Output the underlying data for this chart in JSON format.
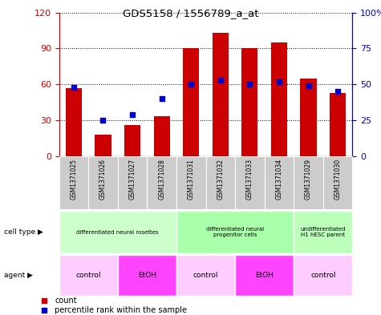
{
  "title": "GDS5158 / 1556789_a_at",
  "samples": [
    "GSM1371025",
    "GSM1371026",
    "GSM1371027",
    "GSM1371028",
    "GSM1371031",
    "GSM1371032",
    "GSM1371033",
    "GSM1371034",
    "GSM1371029",
    "GSM1371030"
  ],
  "counts": [
    57,
    18,
    26,
    33,
    90,
    103,
    90,
    95,
    65,
    53
  ],
  "percentiles": [
    48,
    25,
    29,
    40,
    50,
    53,
    50,
    52,
    49,
    45
  ],
  "bar_color": "#cc0000",
  "dot_color": "#0000cc",
  "ylim_left": [
    0,
    120
  ],
  "ylim_right": [
    0,
    100
  ],
  "yticks_left": [
    0,
    30,
    60,
    90,
    120
  ],
  "yticks_right": [
    0,
    25,
    50,
    75,
    100
  ],
  "ytick_labels_right": [
    "0",
    "25",
    "50",
    "75",
    "100%"
  ],
  "cell_type_groups": [
    {
      "label": "differentiated neural rosettes",
      "start": 0,
      "end": 4,
      "color": "#ccffcc"
    },
    {
      "label": "differentiated neural\nprogenitor cells",
      "start": 4,
      "end": 8,
      "color": "#aaffaa"
    },
    {
      "label": "undifferentiated\nH1 hESC parent",
      "start": 8,
      "end": 10,
      "color": "#bbffbb"
    }
  ],
  "agent_groups": [
    {
      "label": "control",
      "start": 0,
      "end": 2,
      "color": "#ffccff"
    },
    {
      "label": "EtOH",
      "start": 2,
      "end": 4,
      "color": "#ff44ff"
    },
    {
      "label": "control",
      "start": 4,
      "end": 6,
      "color": "#ffccff"
    },
    {
      "label": "EtOH",
      "start": 6,
      "end": 8,
      "color": "#ff44ff"
    },
    {
      "label": "control",
      "start": 8,
      "end": 10,
      "color": "#ffccff"
    }
  ],
  "legend_count_label": "count",
  "legend_percentile_label": "percentile rank within the sample",
  "cell_type_label": "cell type",
  "agent_label": "agent",
  "sample_bg_color": "#cccccc",
  "fig_width": 4.75,
  "fig_height": 3.93,
  "dpi": 100
}
